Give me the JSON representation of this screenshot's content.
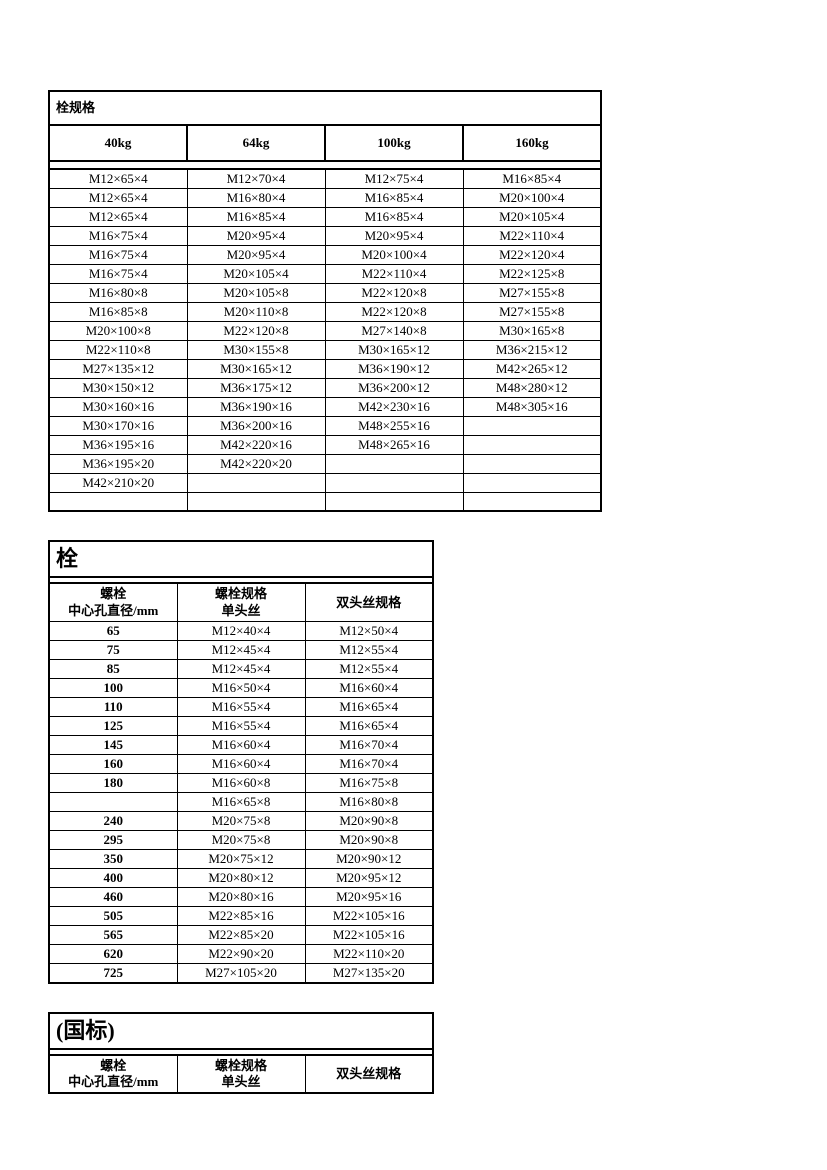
{
  "table1": {
    "title": "栓规格",
    "headers": [
      "40kg",
      "64kg",
      "100kg",
      "160kg"
    ],
    "rows": [
      [
        "M12×65×4",
        "M12×70×4",
        "M12×75×4",
        "M16×85×4"
      ],
      [
        "M12×65×4",
        "M16×80×4",
        "M16×85×4",
        "M20×100×4"
      ],
      [
        "M12×65×4",
        "M16×85×4",
        "M16×85×4",
        "M20×105×4"
      ],
      [
        "M16×75×4",
        "M20×95×4",
        "M20×95×4",
        "M22×110×4"
      ],
      [
        "M16×75×4",
        "M20×95×4",
        "M20×100×4",
        "M22×120×4"
      ],
      [
        "M16×75×4",
        "M20×105×4",
        "M22×110×4",
        "M22×125×8"
      ],
      [
        "M16×80×8",
        "M20×105×8",
        "M22×120×8",
        "M27×155×8"
      ],
      [
        "M16×85×8",
        "M20×110×8",
        "M22×120×8",
        "M27×155×8"
      ],
      [
        "M20×100×8",
        "M22×120×8",
        "M27×140×8",
        "M30×165×8"
      ],
      [
        "M22×110×8",
        "M30×155×8",
        "M30×165×12",
        "M36×215×12"
      ],
      [
        "M27×135×12",
        "M30×165×12",
        "M36×190×12",
        "M42×265×12"
      ],
      [
        "M30×150×12",
        "M36×175×12",
        "M36×200×12",
        "M48×280×12"
      ],
      [
        "M30×160×16",
        "M36×190×16",
        "M42×230×16",
        "M48×305×16"
      ],
      [
        "M30×170×16",
        "M36×200×16",
        "M48×255×16",
        ""
      ],
      [
        "M36×195×16",
        "M42×220×16",
        "M48×265×16",
        ""
      ],
      [
        "M36×195×20",
        "M42×220×20",
        "",
        ""
      ],
      [
        "M42×210×20",
        "",
        "",
        ""
      ],
      [
        "",
        "",
        "",
        ""
      ]
    ]
  },
  "table2": {
    "title": "栓",
    "headers": [
      "螺栓\n中心孔直径/mm",
      "螺栓规格\n单头丝",
      "双头丝规格"
    ],
    "rows": [
      [
        "65",
        "M12×40×4",
        "M12×50×4"
      ],
      [
        "75",
        "M12×45×4",
        "M12×55×4"
      ],
      [
        "85",
        "M12×45×4",
        "M12×55×4"
      ],
      [
        "100",
        "M16×50×4",
        "M16×60×4"
      ],
      [
        "110",
        "M16×55×4",
        "M16×65×4"
      ],
      [
        "125",
        "M16×55×4",
        "M16×65×4"
      ],
      [
        "145",
        "M16×60×4",
        "M16×70×4"
      ],
      [
        "160",
        "M16×60×4",
        "M16×70×4"
      ],
      [
        "180",
        "M16×60×8",
        "M16×75×8"
      ],
      [
        "",
        "M16×65×8",
        "M16×80×8"
      ],
      [
        "240",
        "M20×75×8",
        "M20×90×8"
      ],
      [
        "295",
        "M20×75×8",
        "M20×90×8"
      ],
      [
        "350",
        "M20×75×12",
        "M20×90×12"
      ],
      [
        "400",
        "M20×80×12",
        "M20×95×12"
      ],
      [
        "460",
        "M20×80×16",
        "M20×95×16"
      ],
      [
        "505",
        "M22×85×16",
        "M22×105×16"
      ],
      [
        "565",
        "M22×85×20",
        "M22×105×16"
      ],
      [
        "620",
        "M22×90×20",
        "M22×110×20"
      ],
      [
        "725",
        "M27×105×20",
        "M27×135×20"
      ]
    ]
  },
  "table3": {
    "title": "(国标)",
    "headers": [
      "螺栓\n中心孔直径/mm",
      "螺栓规格\n单头丝",
      "双头丝规格"
    ]
  },
  "colors": {
    "border": "#000000",
    "background": "#ffffff",
    "text": "#000000"
  },
  "fonts": {
    "body": "SimSun",
    "title_size": 22,
    "header_size": 18,
    "cell_size": 13
  }
}
